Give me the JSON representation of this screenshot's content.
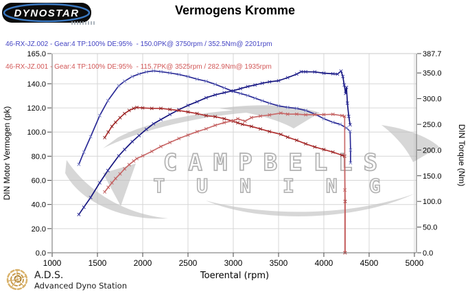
{
  "header": {
    "logo_text": "DYNOSTAR",
    "title": "Vermogens Kromme"
  },
  "legend": [
    {
      "label": "46-RX-JZ.002 - Gear:4 TP:100% DE:95%  - 150.0PK@ 3750rpm / 352.5Nm@ 2201rpm",
      "color": "#4343c3"
    },
    {
      "label": "46-RX-JZ.001 - Gear:4 TP:100% DE:95%  - 115.7PK@ 3525rpm / 282.9Nm@ 1935rpm",
      "color": "#d25757"
    }
  ],
  "footer": {
    "abbr": "A.D.S.",
    "name": "Advanced Dyno Station"
  },
  "chart_data": {
    "type": "line",
    "title": "Vermogens Kromme",
    "xlabel": "Toerental (rpm)",
    "ylabel_left": "DIN Motor Vermogen (pk)",
    "ylabel_right": "DIN Torque (Nm)",
    "xlim": [
      1000,
      5023
    ],
    "x_ticks": [
      1000,
      1500,
      2000,
      2500,
      3000,
      3500,
      4000,
      4500,
      5000
    ],
    "left_max": 165,
    "left_ticks": [
      0,
      20,
      40,
      60,
      80,
      100,
      120,
      140,
      165
    ],
    "right_max": 387.7,
    "right_ticks": [
      0,
      50,
      100,
      150,
      200,
      250,
      300,
      350,
      387.7
    ],
    "grid": true,
    "legend_position": "top-left",
    "watermark": {
      "line1": "CAMPBELLS",
      "line2": "TUNING"
    },
    "series": [
      {
        "id": "run002-torque",
        "run": "46-RX-JZ.002",
        "quantity": "torque",
        "axis": "nm",
        "peak": "352.5Nm@ 2201rpm",
        "color": "#2a2a96",
        "marker_color": "#7b82c6",
        "points": [
          [
            1295,
            172
          ],
          [
            1350,
            196
          ],
          [
            1425,
            226
          ],
          [
            1525,
            267
          ],
          [
            1615,
            296
          ],
          [
            1735,
            325
          ],
          [
            1800,
            334
          ],
          [
            1885,
            343
          ],
          [
            1960,
            348
          ],
          [
            2040,
            352
          ],
          [
            2120,
            354
          ],
          [
            2201,
            352.5
          ],
          [
            2300,
            350
          ],
          [
            2400,
            347
          ],
          [
            2500,
            343
          ],
          [
            2600,
            338
          ],
          [
            2700,
            334
          ],
          [
            2800,
            328
          ],
          [
            2900,
            321
          ],
          [
            3000,
            314
          ],
          [
            3080,
            310
          ],
          [
            3160,
            306
          ],
          [
            3240,
            301
          ],
          [
            3320,
            296
          ],
          [
            3400,
            291
          ],
          [
            3500,
            286
          ],
          [
            3600,
            283
          ],
          [
            3700,
            281
          ],
          [
            3800,
            277
          ],
          [
            3900,
            270
          ],
          [
            4000,
            261
          ],
          [
            4100,
            254
          ],
          [
            4180,
            250
          ],
          [
            4250,
            243
          ],
          [
            4290,
            236
          ],
          [
            4295,
            200
          ],
          [
            4295,
            175
          ]
        ]
      },
      {
        "id": "run002-power",
        "run": "46-RX-JZ.002",
        "quantity": "power",
        "axis": "pk",
        "peak": "150.0PK@ 3750rpm",
        "color": "#15157e",
        "marker_color": "#30309a",
        "points": [
          [
            1295,
            31.7
          ],
          [
            1350,
            37.7
          ],
          [
            1425,
            45.8
          ],
          [
            1525,
            58
          ],
          [
            1615,
            68.1
          ],
          [
            1735,
            80.3
          ],
          [
            1800,
            85.6
          ],
          [
            1885,
            92.1
          ],
          [
            1960,
            97.1
          ],
          [
            2040,
            102.3
          ],
          [
            2120,
            106.9
          ],
          [
            2201,
            110.4
          ],
          [
            2300,
            114.6
          ],
          [
            2400,
            118.6
          ],
          [
            2500,
            122.1
          ],
          [
            2600,
            125.1
          ],
          [
            2700,
            128.4
          ],
          [
            2800,
            130.8
          ],
          [
            2900,
            132.6
          ],
          [
            3000,
            134.2
          ],
          [
            3080,
            136
          ],
          [
            3160,
            137.7
          ],
          [
            3240,
            139
          ],
          [
            3320,
            140.4
          ],
          [
            3400,
            141.6
          ],
          [
            3500,
            142.5
          ],
          [
            3600,
            145.1
          ],
          [
            3700,
            148
          ],
          [
            3750,
            150
          ],
          [
            3800,
            149.9
          ],
          [
            3900,
            149.8
          ],
          [
            4000,
            148.8
          ],
          [
            4100,
            148.3
          ],
          [
            4150,
            148
          ],
          [
            4190,
            150.5
          ],
          [
            4210,
            146
          ],
          [
            4225,
            139
          ],
          [
            4240,
            132
          ],
          [
            4250,
            137
          ],
          [
            4260,
            124
          ],
          [
            4275,
            113
          ],
          [
            4290,
            106
          ]
        ]
      },
      {
        "id": "run001-torque",
        "run": "46-RX-JZ.001",
        "quantity": "torque",
        "axis": "nm",
        "peak": "282.9Nm@ 1935rpm",
        "color": "#b23232",
        "marker_color": "#8e2222",
        "points": [
          [
            1580,
            224
          ],
          [
            1620,
            235
          ],
          [
            1660,
            246
          ],
          [
            1700,
            254
          ],
          [
            1750,
            263
          ],
          [
            1800,
            271
          ],
          [
            1850,
            277
          ],
          [
            1900,
            281
          ],
          [
            1935,
            282.9
          ],
          [
            2000,
            282
          ],
          [
            2100,
            281
          ],
          [
            2200,
            281
          ],
          [
            2300,
            279
          ],
          [
            2400,
            277
          ],
          [
            2500,
            274
          ],
          [
            2600,
            271
          ],
          [
            2700,
            267
          ],
          [
            2800,
            265
          ],
          [
            2900,
            261
          ],
          [
            3000,
            256
          ],
          [
            3050,
            253
          ],
          [
            3100,
            250
          ],
          [
            3200,
            246
          ],
          [
            3300,
            241
          ],
          [
            3400,
            236
          ],
          [
            3525,
            230.5
          ],
          [
            3600,
            225
          ],
          [
            3700,
            219
          ],
          [
            3800,
            212
          ],
          [
            3900,
            206
          ],
          [
            4000,
            201
          ],
          [
            4100,
            196
          ],
          [
            4200,
            190
          ],
          [
            4230,
            188
          ],
          [
            4235,
            100
          ],
          [
            4235,
            0
          ]
        ]
      },
      {
        "id": "run001-power",
        "run": "46-RX-JZ.001",
        "quantity": "power",
        "axis": "pk",
        "peak": "115.7PK@ 3525rpm",
        "color": "#c96a6a",
        "marker_color": "#c05c5c",
        "points": [
          [
            1580,
            50.4
          ],
          [
            1620,
            54.2
          ],
          [
            1660,
            57.9
          ],
          [
            1700,
            61.5
          ],
          [
            1750,
            65.4
          ],
          [
            1800,
            69.5
          ],
          [
            1850,
            73
          ],
          [
            1900,
            76
          ],
          [
            1935,
            78
          ],
          [
            2000,
            80.3
          ],
          [
            2100,
            84
          ],
          [
            2200,
            88
          ],
          [
            2300,
            91.4
          ],
          [
            2400,
            94.7
          ],
          [
            2500,
            97.5
          ],
          [
            2600,
            100.3
          ],
          [
            2700,
            102.7
          ],
          [
            2800,
            105.6
          ],
          [
            2900,
            107.8
          ],
          [
            3000,
            109.4
          ],
          [
            3050,
            111
          ],
          [
            3130,
            109
          ],
          [
            3200,
            112
          ],
          [
            3300,
            113.2
          ],
          [
            3400,
            114.2
          ],
          [
            3525,
            115.7
          ],
          [
            3600,
            114.8
          ],
          [
            3700,
            114.9
          ],
          [
            3800,
            114.3
          ],
          [
            3900,
            114.4
          ],
          [
            4000,
            114.5
          ],
          [
            4100,
            114.7
          ],
          [
            4200,
            113.6
          ],
          [
            4230,
            113
          ],
          [
            4232,
            52
          ],
          [
            4232,
            0
          ]
        ]
      }
    ]
  }
}
